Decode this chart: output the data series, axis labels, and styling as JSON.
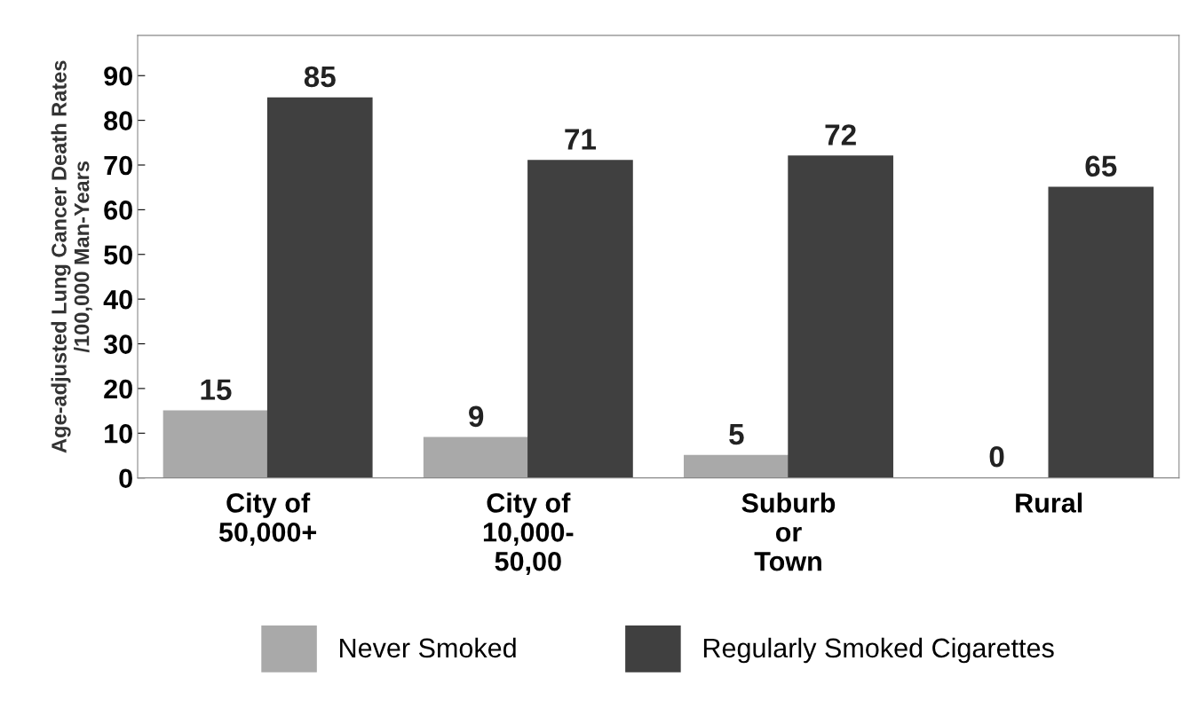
{
  "chart_data": {
    "type": "bar",
    "ylabel": "Age-adjusted Lung Cancer Death Rates\n/100,000 Man-Years",
    "categories": [
      "City of\n50,000+",
      "City of\n10,000-\n50,00",
      "Suburb\nor\nTown",
      "Rural"
    ],
    "series": [
      {
        "name": "Never Smoked",
        "color": "#a9a9a9",
        "values": [
          15,
          9,
          5,
          0
        ]
      },
      {
        "name": "Regularly Smoked Cigarettes",
        "color": "#404040",
        "values": [
          85,
          71,
          72,
          65
        ]
      }
    ],
    "ylim": [
      0,
      99
    ],
    "yticks": [
      0,
      10,
      20,
      30,
      40,
      50,
      60,
      70,
      80,
      90
    ],
    "data_labels": true,
    "grid": false,
    "legend": "bottom"
  }
}
